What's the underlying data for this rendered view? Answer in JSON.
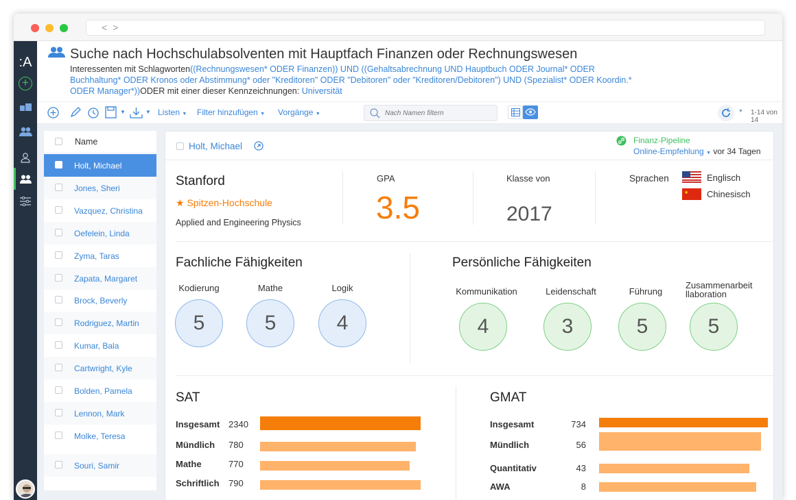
{
  "app": {
    "logo": ":A"
  },
  "nav": {
    "icons": [
      "plus-circle-icon",
      "briefcase-icon",
      "people-icon",
      "person-icon",
      "people-icon",
      "sliders-icon"
    ]
  },
  "header": {
    "title": "Suche nach Hochschulabsolventen mit Hauptfach Finanzen oder Rechnungswesen",
    "line1_prefix": "Interessenten mit Schlagworten",
    "line1_query": "((Rechnungswesen* ODER Finanzen)) UND ((Gehaltsabrechnung UND Hauptbuch ODER Journal* ODER",
    "line2": "Buchhaltung* ODER Kronos oder Abstimmung* oder \"Kreditoren\" ODER \"Debitoren\" oder \"Kreditoren/Debitoren\") UND (Spezialist* ODER Koordin.*",
    "line3_query": "ODER Manager*))",
    "line3_mid": "ODER mit einer dieser Kennzeichnungen:",
    "line3_tag": "Universität"
  },
  "toolbar": {
    "listen": "Listen",
    "filter": "Filter hinzufügen",
    "vorgaenge": "Vorgänge",
    "search_placeholder": "Nach Namen filtern",
    "count": "1-14 von 14"
  },
  "list": {
    "header": "Name",
    "rows": [
      "Holt, Michael",
      "Jones, Sheri",
      "Vazquez, Christina",
      "Oefelein, Linda",
      "Zyma, Taras",
      "Zapata, Margaret",
      "Brock, Beverly",
      "Rodriguez, Martin",
      "Kumar, Bala",
      "Cartwright, Kyle",
      "Bolden, Pamela",
      "Lennon, Mark",
      "Molke, Teresa",
      "Souri, Samir"
    ]
  },
  "detail": {
    "name": "Holt, Michael",
    "pipeline": "Finanz-Pipeline",
    "source": "Online-Empfehlung",
    "age": "vor 34 Tagen",
    "school": "Stanford",
    "tier": "Spitzen-Hochschule",
    "major": "Applied and Engineering Physics",
    "gpa_label": "GPA",
    "gpa": "3.5",
    "class_label": "Klasse von",
    "class_year": "2017",
    "lang_label": "Sprachen",
    "lang1": "Englisch",
    "lang2": "Chinesisch",
    "tech_title": "Fachliche Fähigkeiten",
    "tech": [
      {
        "label": "Kodierung",
        "value": "5"
      },
      {
        "label": "Mathe",
        "value": "5"
      },
      {
        "label": "Logik",
        "value": "4"
      }
    ],
    "pers_title": "Persönliche Fähigkeiten",
    "pers": [
      {
        "label": "Kommunikation",
        "value": "4"
      },
      {
        "label": "Leidenschaft",
        "value": "3"
      },
      {
        "label": "Führung",
        "value": "5"
      },
      {
        "label": "Zusammenarbeit\nllaboration",
        "value": "5"
      }
    ],
    "sat_title": "SAT",
    "sat": [
      {
        "label": "Insgesamt",
        "value": "2340",
        "fraction": 1.0
      },
      {
        "label": "Mündlich",
        "value": "780",
        "fraction": 0.97
      },
      {
        "label": "Mathe",
        "value": "770",
        "fraction": 0.93
      },
      {
        "label": "Schriftlich",
        "value": "790",
        "fraction": 1.0
      }
    ],
    "gmat_title": "GMAT",
    "gmat": [
      {
        "label": "Insgesamt",
        "value": "734",
        "fraction": 1.0
      },
      {
        "label": "Mündlich",
        "value": "56",
        "fraction": 0.96
      },
      {
        "label": "Quantitativ",
        "value": "43",
        "fraction": 0.89
      },
      {
        "label": "AWA",
        "value": "8",
        "fraction": 0.93
      }
    ]
  },
  "colors": {
    "accent": "#3a86d8",
    "orange": "#f57e0b",
    "green": "#3fbf5f",
    "nav": "#253241"
  }
}
